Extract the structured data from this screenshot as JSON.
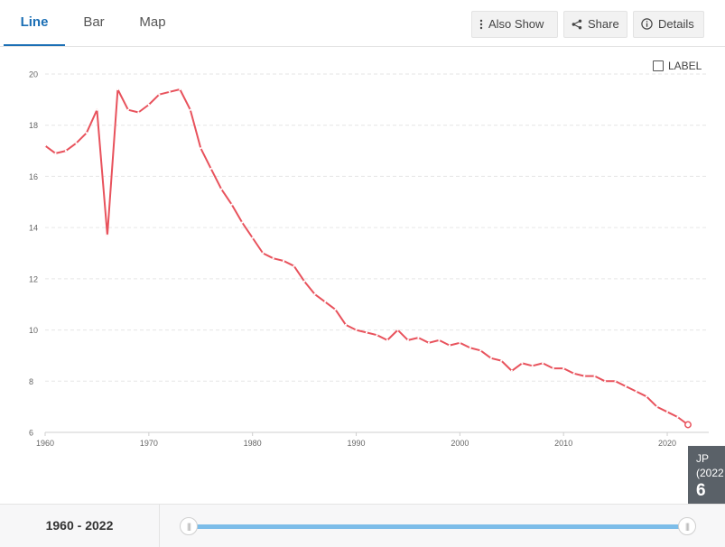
{
  "tabs": [
    {
      "label": "Line",
      "active": true
    },
    {
      "label": "Bar",
      "active": false
    },
    {
      "label": "Map",
      "active": false
    }
  ],
  "toolbar": {
    "also_show": "Also Show",
    "share": "Share",
    "details": "Details"
  },
  "label_toggle": {
    "text": "LABEL",
    "checked": false
  },
  "colors": {
    "series": "#e8525c",
    "accent": "#1b6fb5",
    "slider": "#7cbde9"
  },
  "icons": {
    "also_show": "vertical-dots-icon",
    "share": "share-icon",
    "details": "info-icon"
  },
  "chart_data": {
    "type": "line",
    "xlim": [
      1960,
      2022
    ],
    "ylim": [
      6,
      20
    ],
    "x_ticks": [
      "1960",
      "1970",
      "1980",
      "1990",
      "2000",
      "2010",
      "2020"
    ],
    "y_ticks": [
      "6",
      "8",
      "10",
      "12",
      "14",
      "16",
      "18",
      "20"
    ],
    "grid": "horizontal dashed",
    "series": [
      {
        "x": [
          1960,
          1961,
          1962,
          1963,
          1964,
          1965,
          1966,
          1967,
          1968,
          1969,
          1970,
          1971,
          1972,
          1973,
          1974,
          1975,
          1976,
          1977,
          1978,
          1979,
          1980,
          1981,
          1982,
          1983,
          1984,
          1985,
          1986,
          1987,
          1988,
          1989,
          1990,
          1991,
          1992,
          1993,
          1994,
          1995,
          1996,
          1997,
          1998,
          1999,
          2000,
          2001,
          2002,
          2003,
          2004,
          2005,
          2006,
          2007,
          2008,
          2009,
          2010,
          2011,
          2012,
          2013,
          2014,
          2015,
          2016,
          2017,
          2018,
          2019,
          2020,
          2021,
          2022
        ],
        "values": [
          17.2,
          16.9,
          17.0,
          17.3,
          17.7,
          18.6,
          13.7,
          19.4,
          18.6,
          18.5,
          18.8,
          19.2,
          19.3,
          19.4,
          18.6,
          17.1,
          16.3,
          15.5,
          14.9,
          14.2,
          13.6,
          13.0,
          12.8,
          12.7,
          12.5,
          11.9,
          11.4,
          11.1,
          10.8,
          10.2,
          10.0,
          9.9,
          9.8,
          9.6,
          10.0,
          9.6,
          9.7,
          9.5,
          9.6,
          9.4,
          9.5,
          9.3,
          9.2,
          8.9,
          8.8,
          8.4,
          8.7,
          8.6,
          8.7,
          8.5,
          8.5,
          8.3,
          8.2,
          8.2,
          8.0,
          8.0,
          7.8,
          7.6,
          7.4,
          7.0,
          6.8,
          6.6,
          6.3
        ]
      }
    ]
  },
  "tooltip": {
    "code": "JP",
    "year": "(2022",
    "value": "6"
  },
  "range": {
    "start": "1960",
    "sep": " - ",
    "end": "2022"
  }
}
